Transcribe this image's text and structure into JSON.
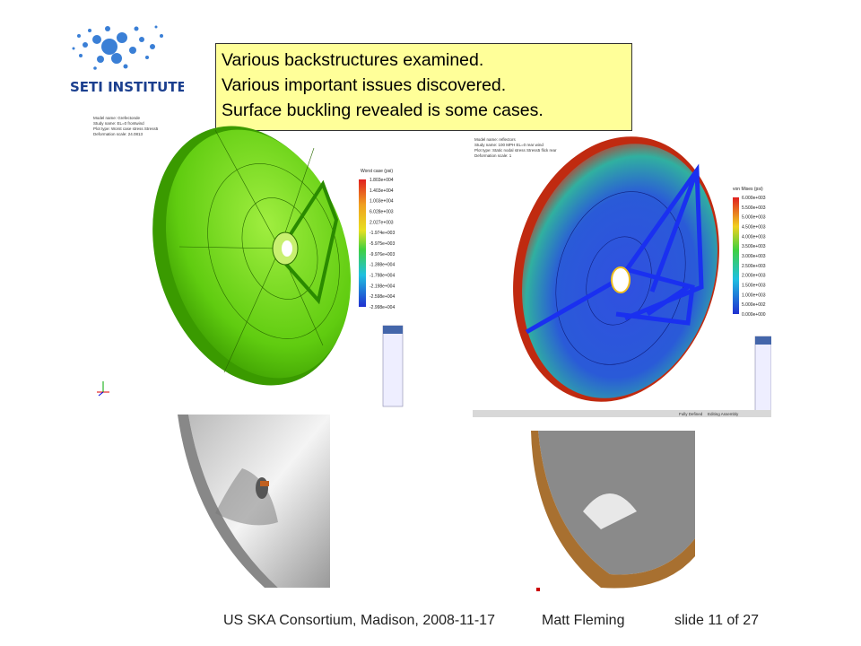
{
  "logo": {
    "text": "SETI INSTITUTE"
  },
  "note": {
    "lines": [
      "Various backstructures examined.",
      "Various important issues discovered.",
      "Surface buckling revealed is some cases."
    ]
  },
  "left_plot": {
    "header": [
      "Model name: Grefectonde",
      "Study name: EL=0 frontwind",
      "Plot type: Worst case stress Stress5",
      "Deformation scale: 24.0813"
    ],
    "legend_title": "Worst case (psi)",
    "legend_values": [
      "1.803e+004",
      "1.403e+004",
      "1.003e+004",
      "6.028e+003",
      "2.027e+003",
      "-1.974e+003",
      "-5.975e+003",
      "-9.976e+003",
      "-1.398e+004",
      "-1.798e+004",
      "-2.198e+004",
      "-2.598e+004",
      "-2.998e+004"
    ]
  },
  "right_plot": {
    "header": [
      "Model name: reflectors",
      "Study name: 100 MPH EL=0 rear wind",
      "Plot type: Static nodal stress Stress5 flick rear",
      "Deformation scale: 1"
    ],
    "legend_title": "von Mises (psi)",
    "legend_values": [
      "6.000e+003",
      "5.500e+003",
      "5.000e+003",
      "4.500e+003",
      "4.000e+003",
      "3.500e+003",
      "3.000e+003",
      "2.500e+003",
      "2.000e+003",
      "1.500e+003",
      "1.000e+003",
      "5.000e+002",
      "0.000e+000"
    ],
    "status": [
      "Fully Defined",
      "Editing Assembly"
    ]
  },
  "footer": {
    "event": "US SKA Consortium, Madison, 2008-11-17",
    "author": "Matt Fleming",
    "slide": "slide 11 of 27"
  }
}
